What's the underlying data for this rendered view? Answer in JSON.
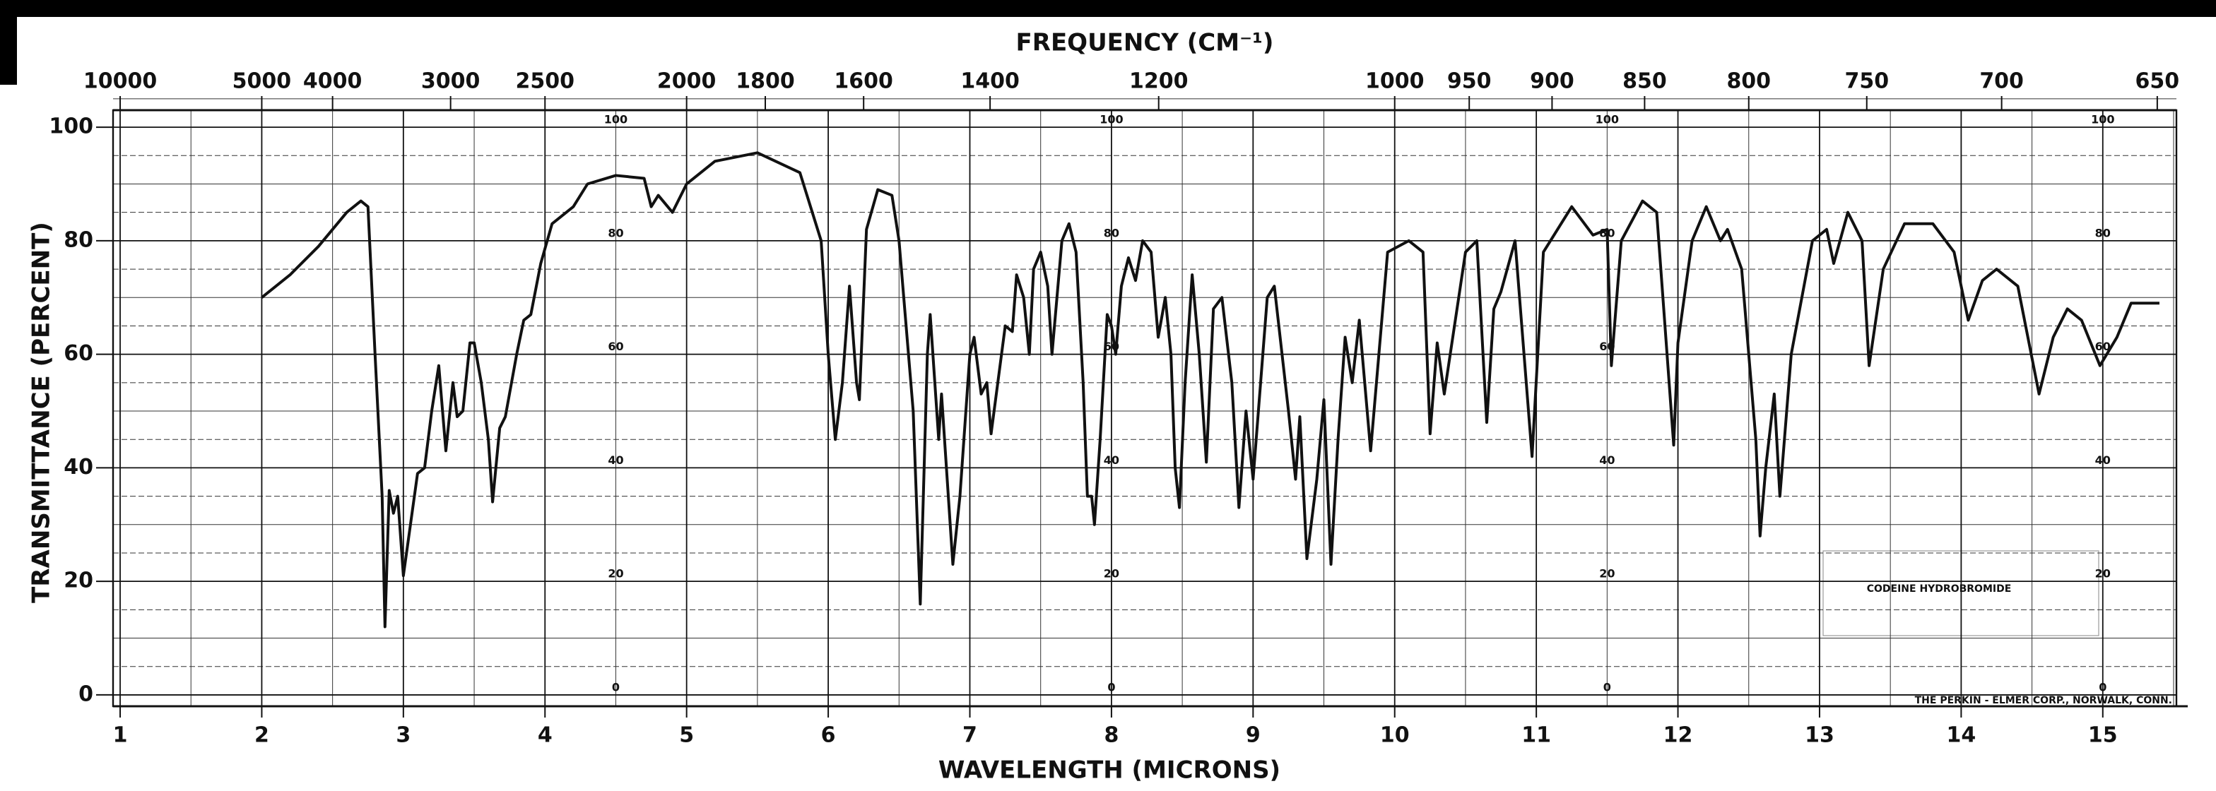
{
  "chart_data": {
    "type": "line",
    "x2label": "FREQUENCY (CM⁻¹)",
    "xlabel": "WAVELENGTH (MICRONS)",
    "ylabel": "TRANSMITTANCE (PERCENT)",
    "sample_label": "CODEINE HYDROBROMIDE",
    "credit": "THE PERKIN - ELMER CORP., NORWALK, CONN.",
    "color": "#111111",
    "grid": true,
    "xlim": [
      0.95,
      15.52
    ],
    "ylim": [
      -2,
      103
    ],
    "xticks": [
      1,
      2,
      3,
      4,
      5,
      6,
      7,
      8,
      9,
      10,
      11,
      12,
      13,
      14,
      15
    ],
    "yticks": [
      0,
      20,
      40,
      60,
      80,
      100
    ],
    "x2ticks": [
      10000,
      5000,
      4000,
      3000,
      2500,
      2000,
      1800,
      1600,
      1400,
      1200,
      1000,
      950,
      900,
      850,
      800,
      750,
      700,
      650
    ],
    "inner_scale_x": [
      4.5,
      8,
      11.5,
      15
    ],
    "x": [
      2.0,
      2.2,
      2.4,
      2.6,
      2.7,
      2.75,
      2.8,
      2.85,
      2.87,
      2.9,
      2.93,
      2.96,
      3.0,
      3.05,
      3.1,
      3.15,
      3.2,
      3.25,
      3.3,
      3.35,
      3.38,
      3.42,
      3.47,
      3.5,
      3.55,
      3.6,
      3.63,
      3.68,
      3.72,
      3.8,
      3.85,
      3.9,
      3.97,
      4.05,
      4.2,
      4.3,
      4.5,
      4.7,
      4.75,
      4.8,
      4.9,
      5.0,
      5.2,
      5.5,
      5.8,
      5.95,
      6.0,
      6.05,
      6.1,
      6.15,
      6.2,
      6.22,
      6.27,
      6.35,
      6.45,
      6.5,
      6.6,
      6.65,
      6.7,
      6.72,
      6.78,
      6.8,
      6.88,
      6.93,
      7.0,
      7.03,
      7.08,
      7.12,
      7.15,
      7.25,
      7.3,
      7.33,
      7.38,
      7.42,
      7.45,
      7.5,
      7.55,
      7.58,
      7.65,
      7.7,
      7.75,
      7.8,
      7.83,
      7.86,
      7.88,
      7.92,
      7.97,
      8.0,
      8.03,
      8.07,
      8.12,
      8.17,
      8.22,
      8.28,
      8.33,
      8.38,
      8.42,
      8.45,
      8.48,
      8.52,
      8.57,
      8.62,
      8.67,
      8.72,
      8.78,
      8.85,
      8.9,
      8.95,
      9.0,
      9.1,
      9.15,
      9.25,
      9.3,
      9.33,
      9.38,
      9.45,
      9.5,
      9.55,
      9.6,
      9.65,
      9.7,
      9.75,
      9.83,
      9.95,
      10.1,
      10.2,
      10.25,
      10.3,
      10.35,
      10.5,
      10.58,
      10.65,
      10.7,
      10.75,
      10.85,
      10.97,
      11.05,
      11.25,
      11.4,
      11.5,
      11.53,
      11.6,
      11.75,
      11.85,
      11.97,
      12.0,
      12.1,
      12.2,
      12.3,
      12.35,
      12.45,
      12.55,
      12.58,
      12.62,
      12.68,
      12.72,
      12.8,
      12.95,
      13.05,
      13.1,
      13.2,
      13.3,
      13.35,
      13.45,
      13.6,
      13.8,
      13.95,
      14.05,
      14.15,
      14.25,
      14.4,
      14.55,
      14.65,
      14.75,
      14.85,
      14.98,
      15.1,
      15.2,
      15.4
    ],
    "values": [
      70,
      74,
      79,
      85,
      87,
      86,
      60,
      35,
      12,
      36,
      32,
      35,
      21,
      30,
      39,
      40,
      50,
      58,
      43,
      55,
      49,
      50,
      62,
      62,
      55,
      45,
      34,
      47,
      49,
      60,
      66,
      67,
      76,
      83,
      86,
      90,
      91.5,
      91,
      86,
      88,
      85,
      90,
      94,
      95.5,
      92,
      80,
      60,
      45,
      55,
      72,
      55,
      52,
      82,
      89,
      88,
      80,
      50,
      16,
      60,
      67,
      45,
      53,
      23,
      35,
      60,
      63,
      53,
      55,
      46,
      65,
      64,
      74,
      70,
      60,
      75,
      78,
      72,
      60,
      80,
      83,
      78,
      55,
      35,
      35,
      30,
      45,
      67,
      65,
      60,
      72,
      77,
      73,
      80,
      78,
      63,
      70,
      60,
      40,
      33,
      55,
      74,
      60,
      41,
      68,
      70,
      55,
      33,
      50,
      38,
      70,
      72,
      50,
      38,
      49,
      24,
      38,
      52,
      23,
      45,
      63,
      55,
      66,
      43,
      78,
      80,
      78,
      46,
      62,
      53,
      78,
      80,
      48,
      68,
      71,
      80,
      42,
      78,
      86,
      81,
      82,
      58,
      80,
      87,
      85,
      44,
      62,
      80,
      86,
      80,
      82,
      75,
      45,
      28,
      40,
      53,
      35,
      60,
      80,
      82,
      76,
      85,
      80,
      58,
      75,
      83,
      83,
      78,
      66,
      73,
      75,
      72,
      53,
      63,
      68,
      66,
      58,
      63,
      69,
      69
    ]
  }
}
